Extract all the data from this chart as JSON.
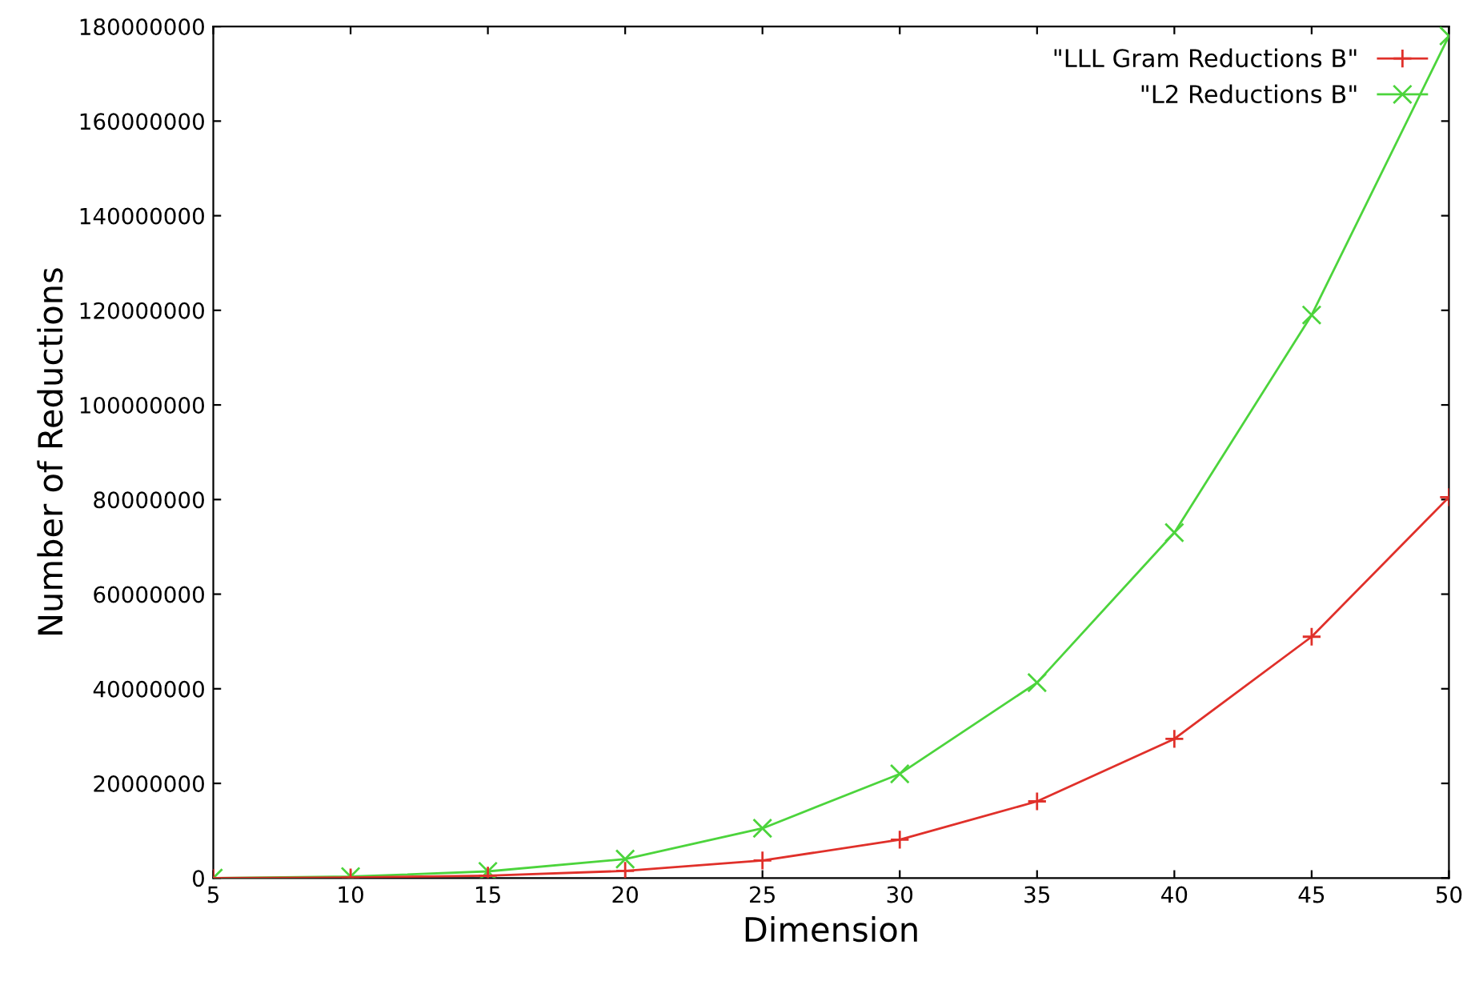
{
  "chart_data": {
    "type": "line",
    "xlabel": "Dimension",
    "ylabel": "Number of Reductions",
    "x": [
      5,
      10,
      15,
      20,
      25,
      30,
      35,
      40,
      45,
      50
    ],
    "series": [
      {
        "name": "\"LLL Gram Reductions B\"",
        "color": "#e0302a",
        "marker": "plus",
        "values": [
          0,
          100000,
          500000,
          1500000,
          3700000,
          8100000,
          16200000,
          29400000,
          51000000,
          80500000
        ]
      },
      {
        "name": "\"L2 Reductions B\"",
        "color": "#4cd43c",
        "marker": "cross",
        "values": [
          0,
          300000,
          1400000,
          4000000,
          10500000,
          22000000,
          41300000,
          73000000,
          119000000,
          178000000
        ]
      }
    ],
    "xlim": [
      5,
      50
    ],
    "xticks": [
      5,
      10,
      15,
      20,
      25,
      30,
      35,
      40,
      45,
      50
    ],
    "ylim": [
      0,
      180000000
    ],
    "yticks": [
      0,
      20000000,
      40000000,
      60000000,
      80000000,
      100000000,
      120000000,
      140000000,
      160000000,
      180000000
    ],
    "grid": false,
    "legend": "top right",
    "line_style": "solid"
  }
}
